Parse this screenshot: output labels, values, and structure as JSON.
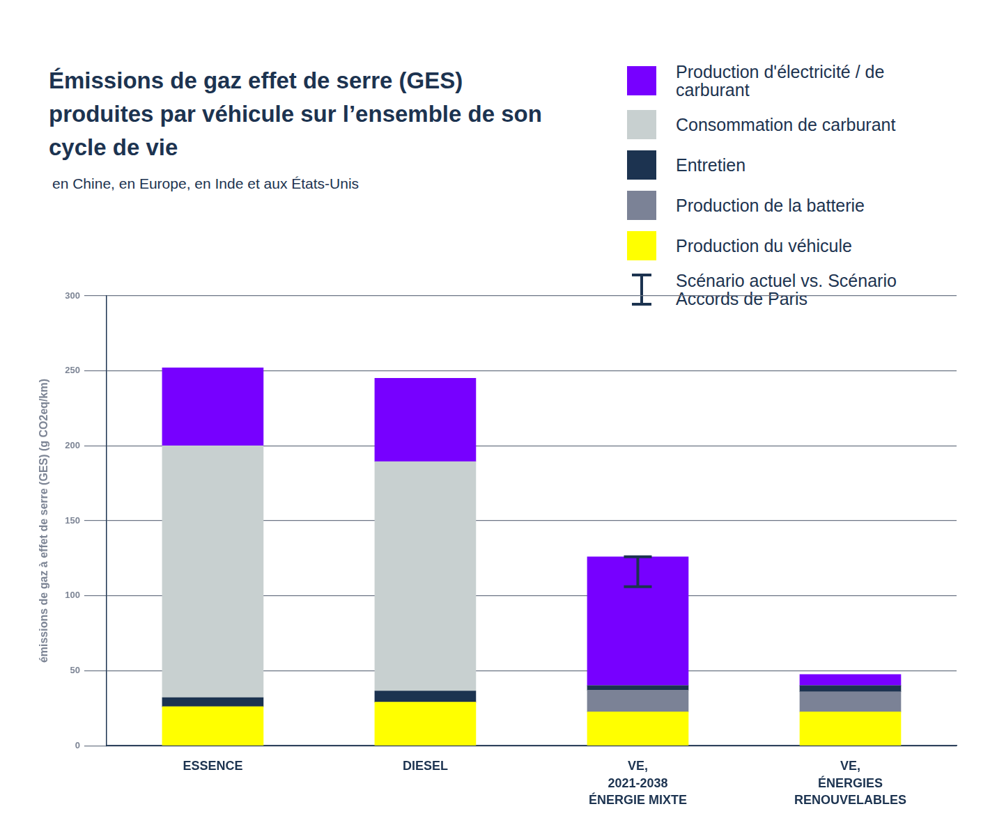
{
  "chart_data": {
    "type": "bar",
    "title": "Émissions de gaz effet de serre (GES) produites par véhicule sur l’ensemble de son cycle de vie",
    "subtitle": "en Chine, en Europe, en Inde et aux États-Unis",
    "y_label": "émissions de gaz à effet de serre (GES) (g CO2eq/km)",
    "categories": [
      [
        "ESSENCE"
      ],
      [
        "DIESEL"
      ],
      [
        "VE,",
        "2021-2038",
        "ÉNERGIE MIXTE"
      ],
      [
        "VE,",
        "ÉNERGIES",
        "RENOUVELABLES"
      ]
    ],
    "series": [
      {
        "name": "Production du véhicule",
        "color": "#ffff00",
        "values": [
          26,
          29,
          22.5,
          22.5
        ]
      },
      {
        "name": "Production de la batterie",
        "color": "#7b8296",
        "values": [
          0,
          0,
          14.5,
          13.5
        ]
      },
      {
        "name": "Entretien",
        "color": "#1c3350",
        "values": [
          6,
          7.5,
          3,
          4
        ]
      },
      {
        "name": "Consommation de carburant",
        "color": "#c8d0d0",
        "values": [
          168,
          153,
          0,
          0
        ]
      },
      {
        "name": "Production d'électricité / de carburant",
        "color": "#7700ff",
        "values": [
          52,
          55.5,
          86,
          7.5
        ]
      }
    ],
    "error_bar": {
      "name": "Scénario actuel vs. Scénario Accords de Paris",
      "color": "#1c3350",
      "low": [
        null,
        null,
        106,
        null
      ],
      "high": [
        null,
        null,
        126,
        null
      ]
    },
    "stacked": true,
    "ylim": [
      0,
      300
    ],
    "yticks": [
      0,
      50,
      100,
      150,
      200,
      250,
      300
    ],
    "grid": true,
    "legend": "top-right"
  }
}
